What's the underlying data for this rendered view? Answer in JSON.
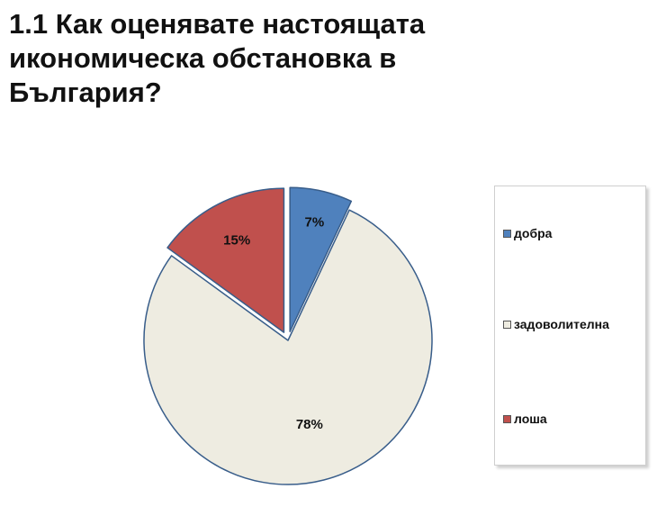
{
  "title": "1.1 Как оценявате настоящата икономическа обстановка в България?",
  "chart_data": {
    "type": "pie",
    "title": "",
    "slices": [
      {
        "label": "добра",
        "value": 7,
        "value_label": "7%",
        "color": "#4f81bd",
        "exploded": true
      },
      {
        "label": "задоволителна",
        "value": 78,
        "value_label": "78%",
        "color": "#eeece1",
        "exploded": false
      },
      {
        "label": "лоша",
        "value": 15,
        "value_label": "15%",
        "color": "#c0504d",
        "exploded": true
      }
    ],
    "legend": {
      "position": "right",
      "items": [
        "добра",
        "задоволителна",
        "лоша"
      ]
    }
  }
}
